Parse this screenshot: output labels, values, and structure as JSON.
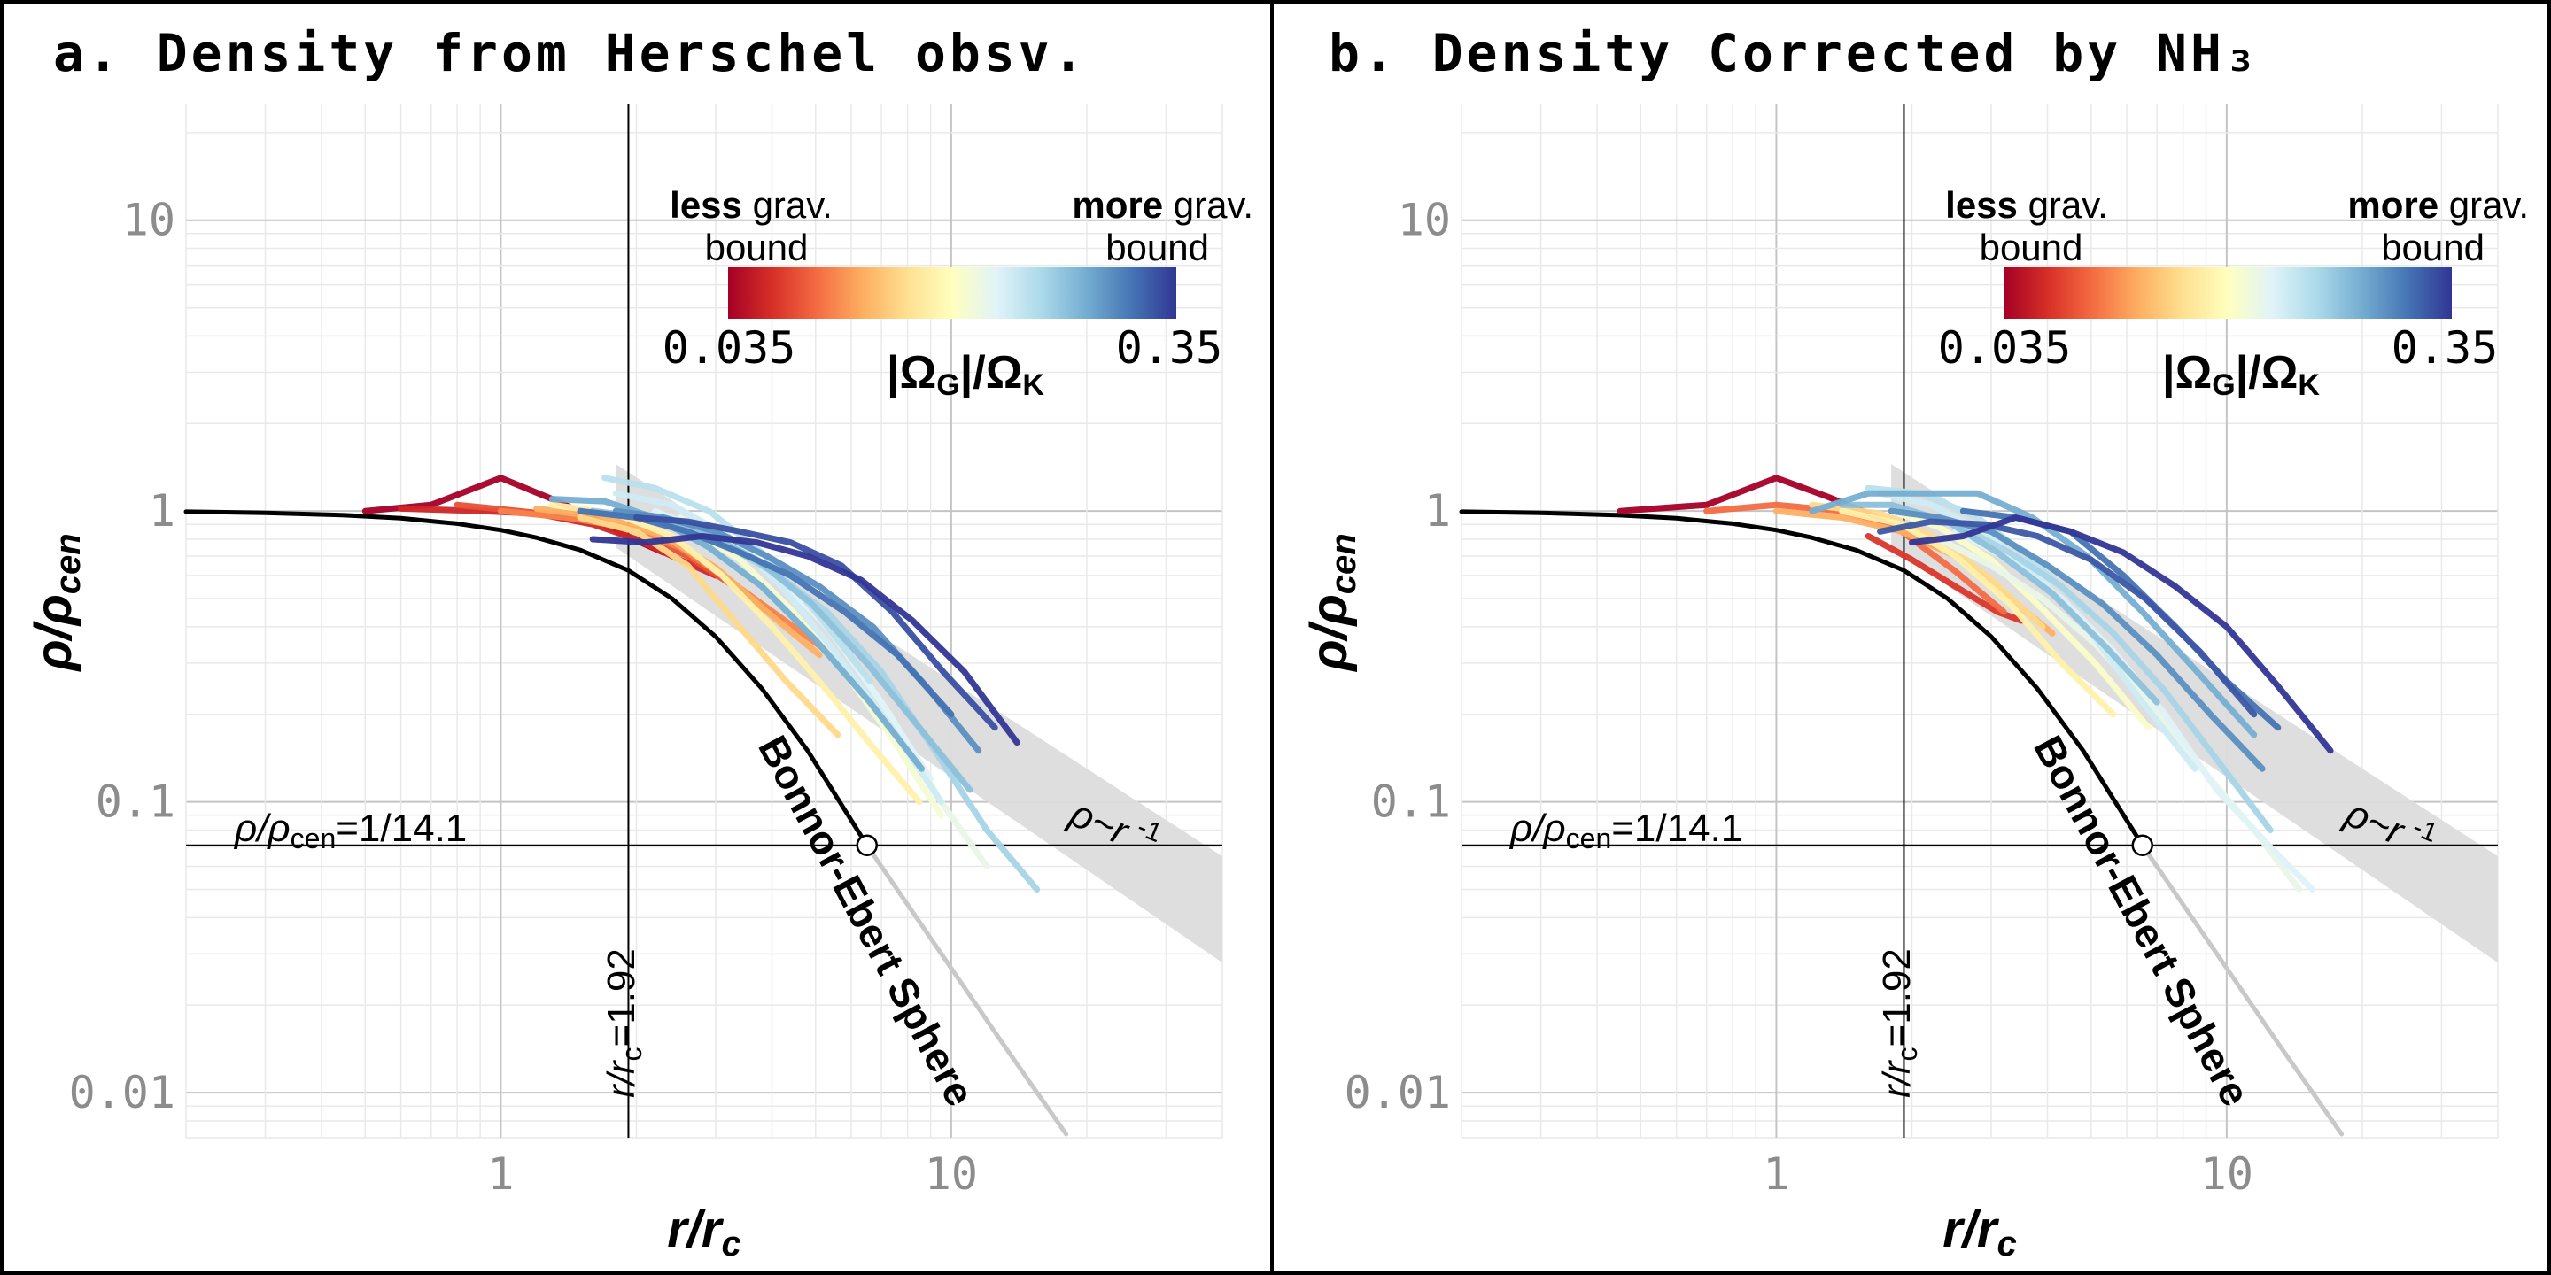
{
  "colors": {
    "background": "#ffffff",
    "frame": "#000000",
    "grid_major": "#c4c4c4",
    "grid_minor": "#e9e9e9",
    "tick_label": "#8c8c8c",
    "be_curve": "#000000",
    "be_extension": "#c8c8c8",
    "power_band": "#dcdcdc",
    "colormap": [
      "#a50026",
      "#d73027",
      "#f46d43",
      "#fdae61",
      "#fee090",
      "#ffffbf",
      "#e0f3f8",
      "#abd9e9",
      "#74add1",
      "#4575b4",
      "#313695"
    ]
  },
  "chart_data": [
    {
      "type": "line",
      "panel": "a",
      "title": "a. Density from Herschel obsv.",
      "xlabel": "r/r",
      "xlabel_sub": "c",
      "ylabel": "ρ/ρ",
      "ylabel_sub": "cen",
      "xscale": "log",
      "yscale": "log",
      "xlim": [
        0.2,
        40
      ],
      "ylim": [
        0.007,
        25
      ],
      "x_ticks": [
        {
          "value": 1,
          "label": "1"
        },
        {
          "value": 10,
          "label": "10"
        }
      ],
      "y_ticks": [
        {
          "value": 10,
          "label": "10"
        },
        {
          "value": 1,
          "label": "1"
        },
        {
          "value": 0.1,
          "label": "0.1"
        },
        {
          "value": 0.01,
          "label": "0.01"
        }
      ],
      "grid": true,
      "colorbar": {
        "min_label": "0.035",
        "max_label": "0.35",
        "min": 0.035,
        "max": 0.35,
        "scale": "log",
        "left_bold": "less",
        "left_rest": " grav.",
        "left_line2": "bound",
        "right_bold": "more",
        "right_rest": " grav.",
        "right_line2": "bound",
        "label": "|Ω",
        "label_sub1": "G",
        "label_mid": "|/Ω",
        "label_sub2": "K"
      },
      "annotations": {
        "rho_threshold": 0.0709,
        "rho_label": "ρ/ρ",
        "rho_label_sub": "cen",
        "rho_label_rest": "=1/14.1",
        "r_threshold": 1.92,
        "r_label": "r/r",
        "r_label_sub": "c",
        "r_label_rest": "=1.92",
        "be_label": "Bonnor-Ebert Sphere",
        "band_label": "ρ~r",
        "band_exp": "-1",
        "band": {
          "x": [
            1.8,
            40
          ],
          "upper": [
            1.45,
            0.065
          ],
          "lower": [
            0.75,
            0.028
          ]
        }
      },
      "be_curve": {
        "x": [
          0.2,
          0.3,
          0.45,
          0.6,
          0.8,
          1.0,
          1.2,
          1.5,
          1.92,
          2.4,
          3.0,
          3.8,
          4.8,
          6.5,
          9.0,
          13.0,
          18.0
        ],
        "y": [
          0.995,
          0.986,
          0.968,
          0.945,
          0.905,
          0.86,
          0.81,
          0.735,
          0.625,
          0.5,
          0.37,
          0.245,
          0.15,
          0.0709,
          0.034,
          0.0148,
          0.0072
        ]
      },
      "critical_point": {
        "x": 6.5,
        "y": 0.0709
      },
      "series": [
        {
          "omega": 0.035,
          "x": [
            0.5,
            0.7,
            1.0,
            1.3,
            1.6,
            1.9,
            2.3
          ],
          "y": [
            1.0,
            1.05,
            1.3,
            1.1,
            0.95,
            0.82,
            0.72
          ]
        },
        {
          "omega": 0.042,
          "x": [
            0.6,
            0.9,
            1.2,
            1.6,
            2.0,
            2.5,
            3.0
          ],
          "y": [
            1.02,
            1.0,
            0.98,
            0.9,
            0.8,
            0.68,
            0.6
          ]
        },
        {
          "omega": 0.05,
          "x": [
            0.8,
            1.1,
            1.5,
            2.0,
            2.6,
            3.3,
            4.2
          ],
          "y": [
            1.05,
            1.0,
            0.95,
            0.85,
            0.7,
            0.55,
            0.42
          ]
        },
        {
          "omega": 0.06,
          "x": [
            1.0,
            1.4,
            1.9,
            2.5,
            3.2,
            4.1,
            5.3
          ],
          "y": [
            1.0,
            0.95,
            0.88,
            0.75,
            0.58,
            0.44,
            0.33
          ]
        },
        {
          "omega": 0.07,
          "x": [
            1.2,
            1.7,
            2.3,
            3.0,
            3.9,
            5.1
          ],
          "y": [
            1.02,
            0.95,
            0.82,
            0.64,
            0.45,
            0.32
          ]
        },
        {
          "omega": 0.085,
          "x": [
            1.5,
            2.0,
            2.6,
            3.3,
            4.3,
            5.6
          ],
          "y": [
            0.95,
            0.85,
            0.65,
            0.42,
            0.26,
            0.17
          ]
        },
        {
          "omega": 0.1,
          "x": [
            1.3,
            1.8,
            2.4,
            3.1,
            4.0,
            5.2,
            6.8,
            8.5
          ],
          "y": [
            1.05,
            0.98,
            0.82,
            0.6,
            0.4,
            0.25,
            0.15,
            0.1
          ]
        },
        {
          "omega": 0.12,
          "x": [
            2.0,
            2.6,
            3.4,
            4.4,
            5.7,
            7.3,
            9.5
          ],
          "y": [
            1.0,
            0.88,
            0.68,
            0.46,
            0.29,
            0.17,
            0.09
          ]
        },
        {
          "omega": 0.13,
          "x": [
            2.5,
            3.3,
            4.3,
            5.6,
            7.3,
            9.5,
            12.0
          ],
          "y": [
            0.95,
            0.78,
            0.58,
            0.36,
            0.2,
            0.1,
            0.06
          ]
        },
        {
          "omega": 0.14,
          "x": [
            2.2,
            3.0,
            4.0,
            5.3,
            7.0,
            9.0
          ],
          "y": [
            1.0,
            0.82,
            0.62,
            0.4,
            0.22,
            0.12
          ]
        },
        {
          "omega": 0.15,
          "x": [
            1.8,
            2.4,
            3.2,
            4.2,
            5.5,
            7.2,
            9.5
          ],
          "y": [
            1.15,
            1.05,
            0.82,
            0.55,
            0.33,
            0.19,
            0.1
          ]
        },
        {
          "omega": 0.165,
          "x": [
            1.7,
            2.2,
            2.9,
            3.8,
            5.0,
            6.6
          ],
          "y": [
            1.3,
            1.2,
            1.0,
            0.72,
            0.45,
            0.26
          ]
        },
        {
          "omega": 0.18,
          "x": [
            2.3,
            3.0,
            4.0,
            5.3,
            7.0,
            9.2,
            12.0,
            15.5
          ],
          "y": [
            0.95,
            0.8,
            0.62,
            0.45,
            0.28,
            0.15,
            0.08,
            0.05
          ]
        },
        {
          "omega": 0.2,
          "x": [
            1.6,
            2.1,
            2.8,
            3.7,
            4.9,
            6.5,
            8.5,
            11.0
          ],
          "y": [
            1.0,
            0.95,
            0.85,
            0.68,
            0.48,
            0.3,
            0.18,
            0.11
          ]
        },
        {
          "omega": 0.22,
          "x": [
            1.3,
            1.7,
            2.2,
            2.9,
            3.8,
            5.0,
            6.6,
            8.6
          ],
          "y": [
            1.1,
            1.08,
            0.95,
            0.75,
            0.55,
            0.36,
            0.22,
            0.13
          ]
        },
        {
          "omega": 0.25,
          "x": [
            1.8,
            2.3,
            3.0,
            3.9,
            5.1,
            6.7,
            8.8,
            11.5
          ],
          "y": [
            1.0,
            0.95,
            0.85,
            0.7,
            0.55,
            0.4,
            0.25,
            0.15
          ]
        },
        {
          "omega": 0.28,
          "x": [
            1.5,
            2.0,
            2.6,
            3.4,
            4.4,
            5.8,
            7.6,
            10.0
          ],
          "y": [
            1.0,
            0.95,
            0.85,
            0.72,
            0.6,
            0.45,
            0.32,
            0.2
          ]
        },
        {
          "omega": 0.32,
          "x": [
            2.0,
            2.6,
            3.4,
            4.4,
            5.7,
            7.4,
            9.6,
            12.5
          ],
          "y": [
            0.95,
            0.92,
            0.85,
            0.78,
            0.65,
            0.45,
            0.28,
            0.18
          ]
        },
        {
          "omega": 0.35,
          "x": [
            1.6,
            2.1,
            2.8,
            3.7,
            4.8,
            6.3,
            8.2,
            10.7,
            14.0
          ],
          "y": [
            0.8,
            0.78,
            0.82,
            0.78,
            0.7,
            0.58,
            0.42,
            0.28,
            0.16
          ]
        }
      ]
    },
    {
      "type": "line",
      "panel": "b",
      "title": "b. Density Corrected by NH₃",
      "xlabel": "r/r",
      "xlabel_sub": "c",
      "ylabel": "ρ/ρ",
      "ylabel_sub": "cen",
      "xscale": "log",
      "yscale": "log",
      "xlim": [
        0.2,
        40
      ],
      "ylim": [
        0.007,
        25
      ],
      "x_ticks": [
        {
          "value": 1,
          "label": "1"
        },
        {
          "value": 10,
          "label": "10"
        }
      ],
      "y_ticks": [
        {
          "value": 10,
          "label": "10"
        },
        {
          "value": 1,
          "label": "1"
        },
        {
          "value": 0.1,
          "label": "0.1"
        },
        {
          "value": 0.01,
          "label": "0.01"
        }
      ],
      "grid": true,
      "colorbar": {
        "min_label": "0.035",
        "max_label": "0.35",
        "min": 0.035,
        "max": 0.35,
        "scale": "log",
        "left_bold": "less",
        "left_rest": " grav.",
        "left_line2": "bound",
        "right_bold": "more",
        "right_rest": " grav.",
        "right_line2": "bound",
        "label": "|Ω",
        "label_sub1": "G",
        "label_mid": "|/Ω",
        "label_sub2": "K"
      },
      "annotations": {
        "rho_threshold": 0.0709,
        "rho_label": "ρ/ρ",
        "rho_label_sub": "cen",
        "rho_label_rest": "=1/14.1",
        "r_threshold": 1.92,
        "r_label": "r/r",
        "r_label_sub": "c",
        "r_label_rest": "=1.92",
        "be_label": "Bonnor-Ebert Sphere",
        "band_label": "ρ~r",
        "band_exp": "-1",
        "band": {
          "x": [
            1.8,
            40
          ],
          "upper": [
            1.45,
            0.065
          ],
          "lower": [
            0.75,
            0.028
          ]
        }
      },
      "be_curve": {
        "x": [
          0.2,
          0.3,
          0.45,
          0.6,
          0.8,
          1.0,
          1.2,
          1.5,
          1.92,
          2.4,
          3.0,
          3.8,
          4.8,
          6.5,
          9.0,
          13.0,
          18.0
        ],
        "y": [
          0.995,
          0.986,
          0.968,
          0.945,
          0.905,
          0.86,
          0.81,
          0.735,
          0.625,
          0.5,
          0.37,
          0.245,
          0.15,
          0.0709,
          0.034,
          0.0148,
          0.0072
        ]
      },
      "critical_point": {
        "x": 6.5,
        "y": 0.0709
      },
      "series": [
        {
          "omega": 0.035,
          "x": [
            0.45,
            0.7,
            1.0,
            1.3,
            1.6,
            1.9,
            2.3
          ],
          "y": [
            1.0,
            1.05,
            1.3,
            1.12,
            0.98,
            0.85,
            0.75
          ]
        },
        {
          "omega": 0.045,
          "x": [
            1.6,
            2.0,
            2.5,
            3.1,
            3.5
          ],
          "y": [
            0.82,
            0.68,
            0.55,
            0.45,
            0.42
          ]
        },
        {
          "omega": 0.055,
          "x": [
            0.7,
            1.0,
            1.4,
            1.9,
            2.5,
            3.2
          ],
          "y": [
            1.0,
            1.05,
            1.0,
            0.85,
            0.62,
            0.45
          ]
        },
        {
          "omega": 0.07,
          "x": [
            1.0,
            1.4,
            1.9,
            2.5,
            3.2,
            4.1
          ],
          "y": [
            1.0,
            0.95,
            0.85,
            0.7,
            0.52,
            0.38
          ]
        },
        {
          "omega": 0.085,
          "x": [
            1.2,
            1.7,
            2.3,
            3.0,
            3.9
          ],
          "y": [
            1.05,
            0.98,
            0.8,
            0.58,
            0.4
          ]
        },
        {
          "omega": 0.1,
          "x": [
            1.4,
            1.9,
            2.5,
            3.3,
            4.3,
            5.6
          ],
          "y": [
            1.0,
            0.9,
            0.7,
            0.48,
            0.3,
            0.2
          ]
        },
        {
          "omega": 0.115,
          "x": [
            1.8,
            2.3,
            3.0,
            3.9,
            5.1,
            6.7
          ],
          "y": [
            1.0,
            0.88,
            0.68,
            0.46,
            0.3,
            0.18
          ]
        },
        {
          "omega": 0.13,
          "x": [
            2.3,
            3.0,
            3.9,
            5.1,
            6.7,
            8.8,
            11.5,
            14.5
          ],
          "y": [
            0.8,
            0.65,
            0.5,
            0.35,
            0.22,
            0.13,
            0.08,
            0.05
          ]
        },
        {
          "omega": 0.14,
          "x": [
            2.5,
            3.3,
            4.3,
            5.6,
            7.3,
            9.5,
            12.5,
            15.5
          ],
          "y": [
            0.85,
            0.68,
            0.5,
            0.33,
            0.2,
            0.11,
            0.07,
            0.05
          ]
        },
        {
          "omega": 0.15,
          "x": [
            1.7,
            2.2,
            2.9,
            3.8,
            5.0,
            6.5,
            8.5
          ],
          "y": [
            1.15,
            1.05,
            0.85,
            0.6,
            0.38,
            0.22,
            0.13
          ]
        },
        {
          "omega": 0.165,
          "x": [
            1.6,
            2.1,
            2.8,
            3.7,
            4.9
          ],
          "y": [
            1.2,
            1.15,
            0.95,
            0.68,
            0.45
          ]
        },
        {
          "omega": 0.18,
          "x": [
            2.5,
            3.3,
            4.3,
            5.6,
            7.3,
            9.5,
            12.5
          ],
          "y": [
            0.9,
            0.72,
            0.55,
            0.38,
            0.24,
            0.14,
            0.08
          ]
        },
        {
          "omega": 0.2,
          "x": [
            1.4,
            1.8,
            2.4,
            3.1,
            4.1,
            5.4,
            7.0
          ],
          "y": [
            1.05,
            1.05,
            0.92,
            0.72,
            0.52,
            0.34,
            0.22
          ]
        },
        {
          "omega": 0.22,
          "x": [
            1.2,
            1.6,
            2.1,
            2.8,
            3.7,
            4.9,
            6.5,
            8.6,
            11.5
          ],
          "y": [
            1.0,
            1.15,
            1.15,
            1.15,
            0.95,
            0.7,
            0.45,
            0.28,
            0.17
          ]
        },
        {
          "omega": 0.25,
          "x": [
            1.8,
            2.3,
            3.0,
            4.0,
            5.3,
            7.0,
            9.2,
            12.0
          ],
          "y": [
            1.0,
            0.95,
            0.85,
            0.65,
            0.48,
            0.32,
            0.2,
            0.13
          ]
        },
        {
          "omega": 0.28,
          "x": [
            2.6,
            3.4,
            4.5,
            5.9,
            7.7,
            10.0,
            13.0
          ],
          "y": [
            1.0,
            0.95,
            0.85,
            0.6,
            0.4,
            0.26,
            0.18
          ]
        },
        {
          "omega": 0.31,
          "x": [
            1.7,
            2.2,
            2.9,
            3.8,
            5.0,
            6.6,
            8.7,
            11.5
          ],
          "y": [
            0.85,
            0.92,
            0.9,
            0.82,
            0.68,
            0.5,
            0.33,
            0.2
          ]
        },
        {
          "omega": 0.35,
          "x": [
            2.0,
            2.6,
            3.4,
            4.5,
            5.9,
            7.7,
            10.0,
            13.0,
            17.0
          ],
          "y": [
            0.78,
            0.82,
            0.95,
            0.85,
            0.72,
            0.55,
            0.4,
            0.25,
            0.15
          ]
        }
      ]
    }
  ]
}
